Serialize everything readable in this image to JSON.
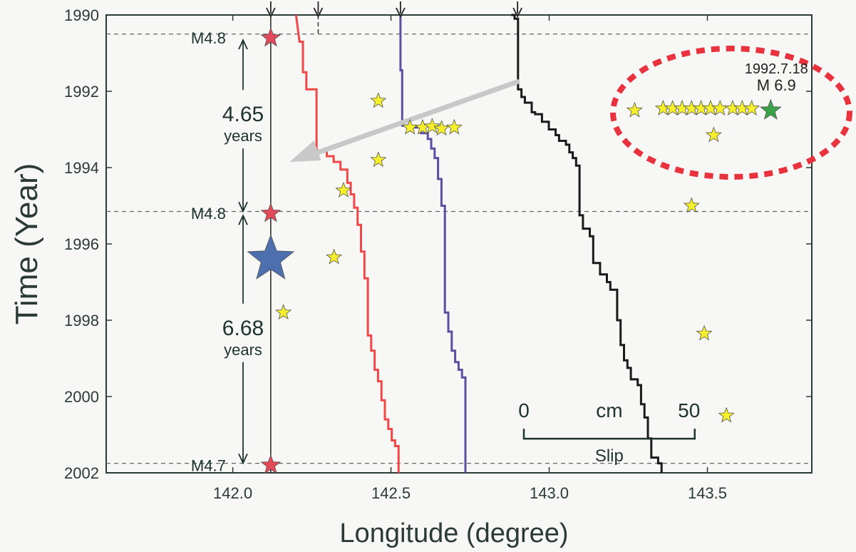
{
  "chart_data": {
    "type": "line",
    "xlabel": "Longitude (degree)",
    "ylabel": "Time (Year)",
    "xlim": [
      141.6,
      143.83
    ],
    "ylim": [
      1990,
      2002
    ],
    "x_ticks": [
      142.0,
      142.5,
      143.0,
      143.5
    ],
    "x_tick_labels": [
      "142.0",
      "142.5",
      "143.0",
      "143.5"
    ],
    "y_ticks": [
      1990,
      1992,
      1994,
      1996,
      1998,
      2000,
      2002
    ],
    "y_tick_labels": [
      "1990",
      "1992",
      "1994",
      "1996",
      "1998",
      "2000",
      "2002"
    ],
    "colors": {
      "frame": "#2b3a36",
      "axis_text": "#2b3a36",
      "red_line": "#f04848",
      "purple_line": "#5a4fa0",
      "black_line": "#1a1a1a",
      "yellow_star": "#f5ef2c",
      "red_star": "#e24a5a",
      "blue_star": "#4d6fae",
      "green_star": "#3aa34a",
      "ellipse": "#e8323e",
      "arrow": "#c8c8c8"
    },
    "series": [
      {
        "color_key": "red_line",
        "start_lon": 142.2,
        "scale_lon_per_cm": 0.0108,
        "points": [
          [
            1990.0,
            0
          ],
          [
            1990.7,
            1
          ],
          [
            1990.7,
            2
          ],
          [
            1991.5,
            2
          ],
          [
            1991.5,
            3
          ],
          [
            1991.95,
            3
          ],
          [
            1991.95,
            6
          ],
          [
            1993.55,
            6
          ],
          [
            1993.55,
            9
          ],
          [
            1993.7,
            9
          ],
          [
            1993.7,
            11
          ],
          [
            1993.85,
            11
          ],
          [
            1993.85,
            13
          ],
          [
            1994.05,
            13
          ],
          [
            1994.05,
            15
          ],
          [
            1994.4,
            15
          ],
          [
            1994.4,
            16
          ],
          [
            1994.7,
            16
          ],
          [
            1994.7,
            17
          ],
          [
            1995.05,
            17
          ],
          [
            1995.05,
            18
          ],
          [
            1995.5,
            18
          ],
          [
            1995.5,
            19
          ],
          [
            1996.2,
            19
          ],
          [
            1996.2,
            20
          ],
          [
            1996.9,
            20
          ],
          [
            1996.9,
            21
          ],
          [
            1998.4,
            21
          ],
          [
            1998.4,
            22
          ],
          [
            1998.8,
            22
          ],
          [
            1998.8,
            23
          ],
          [
            1999.3,
            23
          ],
          [
            1999.3,
            24
          ],
          [
            1999.6,
            24
          ],
          [
            1999.6,
            25
          ],
          [
            2000.1,
            25
          ],
          [
            2000.1,
            26
          ],
          [
            2000.6,
            26
          ],
          [
            2000.6,
            27
          ],
          [
            2000.85,
            27
          ],
          [
            2000.85,
            28
          ],
          [
            2001.15,
            28
          ],
          [
            2001.15,
            29
          ],
          [
            2001.3,
            29
          ],
          [
            2001.3,
            30
          ],
          [
            2001.7,
            30
          ],
          [
            2001.7,
            30
          ],
          [
            2002.0,
            30
          ]
        ]
      },
      {
        "color_key": "purple_line",
        "start_lon": 142.53,
        "scale_lon_per_cm": 0.0108,
        "points": [
          [
            1990.0,
            0
          ],
          [
            1991.45,
            0
          ],
          [
            1991.45,
            0.5
          ],
          [
            1992.9,
            0.5
          ],
          [
            1992.9,
            3
          ],
          [
            1992.95,
            3
          ],
          [
            1992.95,
            6
          ],
          [
            1993.1,
            6
          ],
          [
            1993.1,
            8
          ],
          [
            1993.25,
            8
          ],
          [
            1993.25,
            9
          ],
          [
            1993.5,
            9
          ],
          [
            1993.5,
            10
          ],
          [
            1993.75,
            10
          ],
          [
            1993.75,
            11
          ],
          [
            1994.3,
            11
          ],
          [
            1994.3,
            12
          ],
          [
            1995.0,
            12
          ],
          [
            1995.0,
            13
          ],
          [
            1997.8,
            13
          ],
          [
            1997.8,
            14
          ],
          [
            1998.3,
            14
          ],
          [
            1998.3,
            15
          ],
          [
            1998.8,
            15
          ],
          [
            1998.8,
            16
          ],
          [
            1999.1,
            16
          ],
          [
            1999.1,
            17
          ],
          [
            1999.3,
            17
          ],
          [
            1999.3,
            18
          ],
          [
            1999.5,
            18
          ],
          [
            1999.5,
            19
          ],
          [
            2002.0,
            19
          ]
        ]
      },
      {
        "color_key": "black_line",
        "start_lon": 142.88,
        "scale_lon_per_cm": 0.0108,
        "points": [
          [
            1990.0,
            0
          ],
          [
            1990.0,
            1
          ],
          [
            1990.1,
            1
          ],
          [
            1990.1,
            2
          ],
          [
            1991.95,
            2
          ],
          [
            1991.95,
            3
          ],
          [
            1992.15,
            3
          ],
          [
            1992.15,
            4
          ],
          [
            1992.3,
            4
          ],
          [
            1992.3,
            6
          ],
          [
            1992.55,
            6
          ],
          [
            1992.55,
            7
          ],
          [
            1992.6,
            7
          ],
          [
            1992.6,
            9
          ],
          [
            1992.8,
            9
          ],
          [
            1992.8,
            11
          ],
          [
            1993.0,
            11
          ],
          [
            1993.0,
            13
          ],
          [
            1993.15,
            13
          ],
          [
            1993.15,
            14
          ],
          [
            1993.3,
            14
          ],
          [
            1993.3,
            16
          ],
          [
            1993.4,
            16
          ],
          [
            1993.4,
            17
          ],
          [
            1993.6,
            17
          ],
          [
            1993.6,
            18
          ],
          [
            1993.75,
            18
          ],
          [
            1993.75,
            19
          ],
          [
            1993.95,
            19
          ],
          [
            1993.95,
            20
          ],
          [
            1995.25,
            20
          ],
          [
            1995.25,
            21
          ],
          [
            1995.6,
            21
          ],
          [
            1995.6,
            23
          ],
          [
            1995.8,
            23
          ],
          [
            1995.8,
            24
          ],
          [
            1996.5,
            24
          ],
          [
            1996.5,
            26
          ],
          [
            1996.8,
            26
          ],
          [
            1996.8,
            28
          ],
          [
            1997.0,
            28
          ],
          [
            1997.0,
            29
          ],
          [
            1997.2,
            29
          ],
          [
            1997.2,
            31
          ],
          [
            1998.0,
            31
          ],
          [
            1998.0,
            32
          ],
          [
            1998.65,
            32
          ],
          [
            1998.65,
            33
          ],
          [
            1999.05,
            33
          ],
          [
            1999.05,
            34
          ],
          [
            1999.25,
            34
          ],
          [
            1999.25,
            35
          ],
          [
            1999.55,
            35
          ],
          [
            1999.55,
            37
          ],
          [
            1999.7,
            37
          ],
          [
            1999.7,
            38
          ],
          [
            2000.2,
            38
          ],
          [
            2000.2,
            39
          ],
          [
            2000.55,
            39
          ],
          [
            2000.55,
            40
          ],
          [
            2001.1,
            40
          ],
          [
            2001.1,
            41
          ],
          [
            2001.6,
            41
          ],
          [
            2001.6,
            43
          ],
          [
            2001.75,
            43
          ],
          [
            2001.75,
            44
          ],
          [
            2002.0,
            44
          ]
        ]
      }
    ],
    "top_arrows_lon": [
      142.12,
      142.27,
      142.53,
      142.9
    ],
    "events": [
      {
        "lon": 142.12,
        "year": 1990.6,
        "magnitude_label": "M4.8",
        "color_key": "red_star"
      },
      {
        "lon": 142.12,
        "year": 1995.2,
        "magnitude_label": "M4.8",
        "color_key": "red_star"
      },
      {
        "lon": 142.12,
        "year": 2001.8,
        "magnitude_label": "M4.7",
        "color_key": "red_star"
      }
    ],
    "blue_star": {
      "lon": 142.12,
      "year": 1996.4
    },
    "green_star": {
      "lon": 143.7,
      "year": 1992.5,
      "label_date": "1992.7.18",
      "label_mag": "M 6.9"
    },
    "yellow_stars": [
      [
        142.46,
        1992.25
      ],
      [
        142.56,
        1992.95
      ],
      [
        142.6,
        1992.95
      ],
      [
        142.63,
        1992.92
      ],
      [
        142.66,
        1992.98
      ],
      [
        142.7,
        1992.95
      ],
      [
        142.46,
        1993.8
      ],
      [
        142.35,
        1994.6
      ],
      [
        142.32,
        1996.35
      ],
      [
        142.16,
        1997.8
      ],
      [
        143.27,
        1992.5
      ],
      [
        143.36,
        1992.45
      ],
      [
        143.39,
        1992.45
      ],
      [
        143.42,
        1992.45
      ],
      [
        143.45,
        1992.45
      ],
      [
        143.48,
        1992.45
      ],
      [
        143.51,
        1992.45
      ],
      [
        143.54,
        1992.45
      ],
      [
        143.58,
        1992.45
      ],
      [
        143.61,
        1992.45
      ],
      [
        143.64,
        1992.45
      ],
      [
        143.52,
        1993.15
      ],
      [
        143.45,
        1995.0
      ],
      [
        143.49,
        1998.35
      ],
      [
        143.56,
        2000.5
      ]
    ],
    "intervals": [
      {
        "value": "4.65",
        "unit": "years",
        "from": 1990.6,
        "to": 1995.2
      },
      {
        "value": "6.68",
        "unit": "years",
        "from": 1995.2,
        "to": 2001.8
      }
    ],
    "dashed_lines_years": [
      1990.5,
      1995.15,
      2001.75
    ],
    "scale_bar": {
      "label_start": "0",
      "label_end": "50",
      "unit": "cm",
      "caption": "Slip",
      "lon_start": 142.92,
      "year": 2000.6
    }
  }
}
